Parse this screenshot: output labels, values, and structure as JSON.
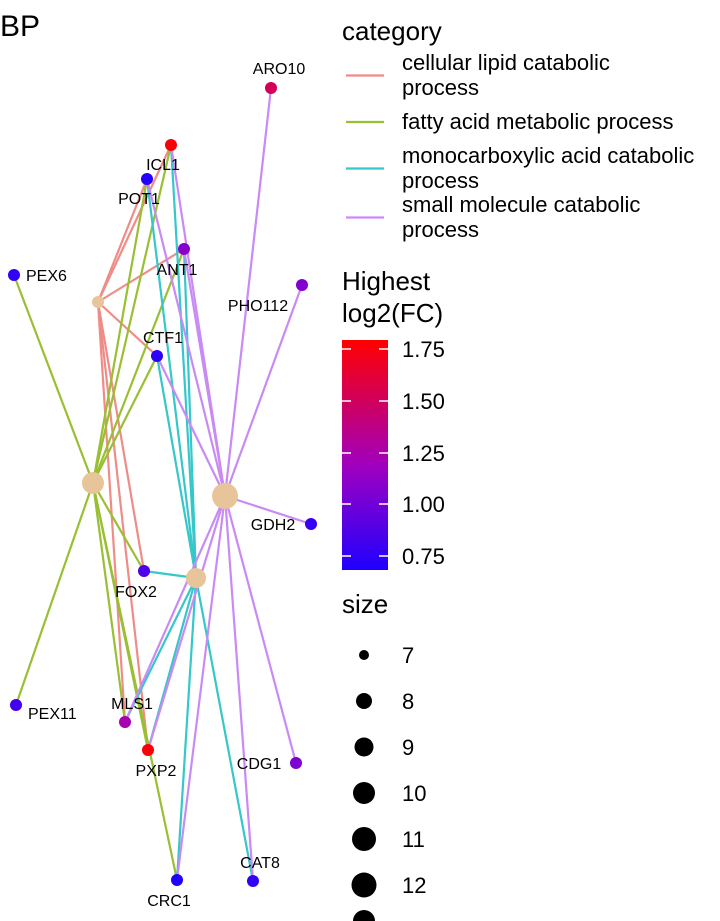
{
  "title": "BP",
  "category_legend": {
    "title": "category",
    "items": [
      {
        "lines": [
          "cellular lipid catabolic",
          "process"
        ],
        "color": "#F08C87"
      },
      {
        "lines": [
          "fatty acid metabolic process"
        ],
        "color": "#99BF33"
      },
      {
        "lines": [
          "monocarboxylic acid catabolic",
          "process"
        ],
        "color": "#35C7C9"
      },
      {
        "lines": [
          "small molecule catabolic",
          "process"
        ],
        "color": "#C98AF5"
      }
    ]
  },
  "color_legend": {
    "title_lines": [
      "Highest",
      "log2(FC)"
    ],
    "ticks": [
      "1.75",
      "1.50",
      "1.25",
      "1.00",
      "0.75"
    ],
    "gradient_top": "#FF0000",
    "gradient_mid": "#9F00C0",
    "gradient_bottom": "#1F00FF"
  },
  "size_legend": {
    "title": "size",
    "items": [
      "7",
      "8",
      "9",
      "10",
      "11",
      "12"
    ]
  },
  "network": {
    "category_node_color": "#E8C49A",
    "genes": [
      {
        "id": "ARO10",
        "label": "ARO10",
        "fc": 1.55
      },
      {
        "id": "ICL1",
        "label": "ICL1",
        "fc": 1.78
      },
      {
        "id": "POT1",
        "label": "POT1",
        "fc": 0.72
      },
      {
        "id": "ANT1",
        "label": "ANT1",
        "fc": 1.15
      },
      {
        "id": "PEX6",
        "label": "PEX6",
        "fc": 0.78
      },
      {
        "id": "PHO112",
        "label": "PHO112",
        "fc": 1.12
      },
      {
        "id": "CTF1",
        "label": "CTF1",
        "fc": 0.76
      },
      {
        "id": "GDH2",
        "label": "GDH2",
        "fc": 0.8
      },
      {
        "id": "FOX2",
        "label": "FOX2",
        "fc": 0.9
      },
      {
        "id": "PEX11",
        "label": "PEX11",
        "fc": 0.85
      },
      {
        "id": "MLS1",
        "label": "MLS1",
        "fc": 1.3
      },
      {
        "id": "PXP2",
        "label": "PXP2",
        "fc": 1.78
      },
      {
        "id": "CDG1",
        "label": "CDG1",
        "fc": 1.1
      },
      {
        "id": "CAT8",
        "label": "CAT8",
        "fc": 0.78
      },
      {
        "id": "CRC1",
        "label": "CRC1",
        "fc": 0.7
      }
    ],
    "edges": [
      {
        "category": 0,
        "gene": "ICL1"
      },
      {
        "category": 0,
        "gene": "POT1"
      },
      {
        "category": 0,
        "gene": "ANT1"
      },
      {
        "category": 0,
        "gene": "CTF1"
      },
      {
        "category": 0,
        "gene": "FOX2"
      },
      {
        "category": 0,
        "gene": "MLS1"
      },
      {
        "category": 0,
        "gene": "PXP2"
      },
      {
        "category": 1,
        "gene": "ICL1"
      },
      {
        "category": 1,
        "gene": "POT1"
      },
      {
        "category": 1,
        "gene": "ANT1"
      },
      {
        "category": 1,
        "gene": "PEX6"
      },
      {
        "category": 1,
        "gene": "CTF1"
      },
      {
        "category": 1,
        "gene": "FOX2"
      },
      {
        "category": 1,
        "gene": "PEX11"
      },
      {
        "category": 1,
        "gene": "MLS1"
      },
      {
        "category": 1,
        "gene": "PXP2"
      },
      {
        "category": 1,
        "gene": "CRC1"
      },
      {
        "category": 2,
        "gene": "ICL1"
      },
      {
        "category": 2,
        "gene": "POT1"
      },
      {
        "category": 2,
        "gene": "ANT1"
      },
      {
        "category": 2,
        "gene": "CTF1"
      },
      {
        "category": 2,
        "gene": "FOX2"
      },
      {
        "category": 2,
        "gene": "MLS1"
      },
      {
        "category": 2,
        "gene": "PXP2"
      },
      {
        "category": 2,
        "gene": "CAT8"
      },
      {
        "category": 2,
        "gene": "CRC1"
      },
      {
        "category": 3,
        "gene": "ARO10"
      },
      {
        "category": 3,
        "gene": "ICL1"
      },
      {
        "category": 3,
        "gene": "POT1"
      },
      {
        "category": 3,
        "gene": "ANT1"
      },
      {
        "category": 3,
        "gene": "PHO112"
      },
      {
        "category": 3,
        "gene": "CTF1"
      },
      {
        "category": 3,
        "gene": "GDH2"
      },
      {
        "category": 3,
        "gene": "MLS1"
      },
      {
        "category": 3,
        "gene": "PXP2"
      },
      {
        "category": 3,
        "gene": "CDG1"
      },
      {
        "category": 3,
        "gene": "CAT8"
      },
      {
        "category": 3,
        "gene": "CRC1"
      }
    ]
  }
}
